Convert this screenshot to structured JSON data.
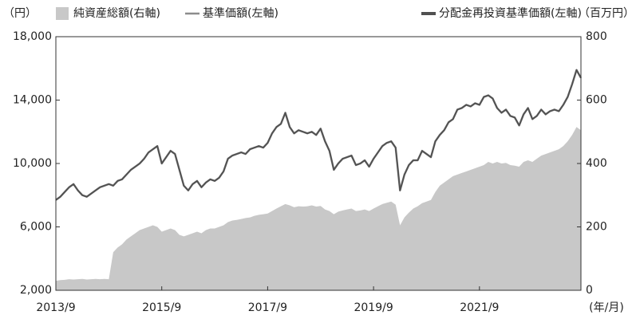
{
  "chart_data": {
    "type": "line-area",
    "y_label": "（円）",
    "y2_label": "（百万円）",
    "x_label": "(年/月)",
    "x": [
      "2013/9",
      "2013/10",
      "2013/11",
      "2013/12",
      "2014/1",
      "2014/2",
      "2014/3",
      "2014/4",
      "2014/5",
      "2014/6",
      "2014/7",
      "2014/8",
      "2014/9",
      "2014/10",
      "2014/11",
      "2014/12",
      "2015/1",
      "2015/2",
      "2015/3",
      "2015/4",
      "2015/5",
      "2015/6",
      "2015/7",
      "2015/8",
      "2015/9",
      "2015/10",
      "2015/11",
      "2015/12",
      "2016/1",
      "2016/2",
      "2016/3",
      "2016/4",
      "2016/5",
      "2016/6",
      "2016/7",
      "2016/8",
      "2016/9",
      "2016/10",
      "2016/11",
      "2016/12",
      "2017/1",
      "2017/2",
      "2017/3",
      "2017/4",
      "2017/5",
      "2017/6",
      "2017/7",
      "2017/8",
      "2017/9",
      "2017/10",
      "2017/11",
      "2017/12",
      "2018/1",
      "2018/2",
      "2018/3",
      "2018/4",
      "2018/5",
      "2018/6",
      "2018/7",
      "2018/8",
      "2018/9",
      "2018/10",
      "2018/11",
      "2018/12",
      "2019/1",
      "2019/2",
      "2019/3",
      "2019/4",
      "2019/5",
      "2019/6",
      "2019/7",
      "2019/8",
      "2019/9",
      "2019/10",
      "2019/11",
      "2019/12",
      "2020/1",
      "2020/2",
      "2020/3",
      "2020/4",
      "2020/5",
      "2020/6",
      "2020/7",
      "2020/8",
      "2020/9",
      "2020/10",
      "2020/11",
      "2020/12",
      "2021/1",
      "2021/2",
      "2021/3",
      "2021/4",
      "2021/5",
      "2021/6",
      "2021/7",
      "2021/8",
      "2021/9",
      "2021/10",
      "2021/11",
      "2021/12",
      "2022/1",
      "2022/2",
      "2022/3",
      "2022/4",
      "2022/5",
      "2022/6",
      "2022/7",
      "2022/8",
      "2022/9",
      "2022/10",
      "2022/11",
      "2022/12",
      "2023/1",
      "2023/2",
      "2023/3",
      "2023/4",
      "2023/5",
      "2023/6",
      "2023/7",
      "2023/8"
    ],
    "xticks": [
      "2013/9",
      "2015/9",
      "2017/9",
      "2019/9",
      "2021/9"
    ],
    "series": [
      {
        "name": "純資産総額(右軸)",
        "kind": "area",
        "axis": "y2",
        "color": "#c8c8c8",
        "values": [
          30,
          32,
          33,
          35,
          34,
          35,
          36,
          34,
          35,
          36,
          35,
          36,
          35,
          120,
          135,
          145,
          160,
          170,
          180,
          190,
          195,
          200,
          205,
          200,
          185,
          190,
          195,
          190,
          175,
          170,
          175,
          180,
          185,
          180,
          190,
          195,
          195,
          200,
          205,
          215,
          220,
          222,
          225,
          228,
          230,
          235,
          238,
          240,
          242,
          250,
          258,
          265,
          272,
          268,
          262,
          265,
          264,
          265,
          268,
          264,
          266,
          255,
          250,
          240,
          248,
          252,
          255,
          258,
          250,
          252,
          255,
          250,
          258,
          265,
          272,
          276,
          280,
          270,
          205,
          230,
          245,
          258,
          265,
          275,
          280,
          285,
          310,
          330,
          340,
          350,
          360,
          365,
          370,
          375,
          380,
          385,
          390,
          395,
          405,
          400,
          405,
          400,
          402,
          395,
          393,
          390,
          405,
          410,
          405,
          415,
          425,
          430,
          435,
          440,
          445,
          455,
          470,
          490,
          515,
          505
        ]
      },
      {
        "name": "基準価額(左軸)",
        "kind": "line",
        "color": "#8c8c8c",
        "values": [
          7700,
          7900,
          8200,
          8500,
          8700,
          8300,
          8000,
          7900,
          8100,
          8300,
          8500,
          8600,
          8700,
          8600,
          8900,
          9000,
          9300,
          9600,
          9800,
          10000,
          10300,
          10700,
          10900,
          11100,
          10000,
          10400,
          10800,
          10600,
          9600,
          8600,
          8300,
          8700,
          8900,
          8500,
          8800,
          9000,
          8900,
          9100,
          9500,
          10300,
          10500,
          10600,
          10700,
          10600,
          10900,
          11000,
          11100,
          11000,
          11300,
          11900,
          12300,
          12500,
          13200,
          12300,
          11900,
          12100,
          12000,
          11900,
          12000,
          11800,
          12200,
          11400,
          10800,
          9600,
          10000,
          10300,
          10400,
          10500,
          9900,
          10000,
          10200,
          9800,
          10300,
          10700,
          11100,
          11300,
          11400,
          11000,
          8300,
          9300,
          9900,
          10200,
          10200,
          10800,
          10600,
          10400,
          11400,
          11800,
          12100,
          12600,
          12800,
          13400,
          13500,
          13700,
          13600,
          13800,
          13700,
          14200,
          14300,
          14100,
          13500,
          13200,
          13400,
          13000,
          12900,
          12400,
          13100,
          13500,
          12800,
          13000,
          13400,
          13100,
          13300,
          13400,
          13300,
          13700,
          14200,
          15000,
          15900,
          15400
        ]
      },
      {
        "name": "分配金再投資基準価額(左軸)",
        "kind": "line",
        "color": "#505050",
        "values": [
          7700,
          7900,
          8200,
          8500,
          8700,
          8300,
          8000,
          7900,
          8100,
          8300,
          8500,
          8600,
          8700,
          8600,
          8900,
          9000,
          9300,
          9600,
          9800,
          10000,
          10300,
          10700,
          10900,
          11100,
          10000,
          10400,
          10800,
          10600,
          9600,
          8600,
          8300,
          8700,
          8900,
          8500,
          8800,
          9000,
          8900,
          9100,
          9500,
          10300,
          10500,
          10600,
          10700,
          10600,
          10900,
          11000,
          11100,
          11000,
          11300,
          11900,
          12300,
          12500,
          13200,
          12300,
          11900,
          12100,
          12000,
          11900,
          12000,
          11800,
          12200,
          11400,
          10800,
          9600,
          10000,
          10300,
          10400,
          10500,
          9900,
          10000,
          10200,
          9800,
          10300,
          10700,
          11100,
          11300,
          11400,
          11000,
          8300,
          9300,
          9900,
          10200,
          10200,
          10800,
          10600,
          10400,
          11400,
          11800,
          12100,
          12600,
          12800,
          13400,
          13500,
          13700,
          13600,
          13800,
          13700,
          14200,
          14300,
          14100,
          13500,
          13200,
          13400,
          13000,
          12900,
          12400,
          13100,
          13500,
          12800,
          13000,
          13400,
          13100,
          13300,
          13400,
          13300,
          13700,
          14200,
          15000,
          15900,
          15400
        ]
      }
    ],
    "ylim": [
      2000,
      18000
    ],
    "yticks": [
      {
        "value": 2000,
        "label": "2,000"
      },
      {
        "value": 6000,
        "label": "6,000"
      },
      {
        "value": 10000,
        "label": "10,000"
      },
      {
        "value": 14000,
        "label": "14,000"
      },
      {
        "value": 18000,
        "label": "18,000"
      }
    ],
    "y2lim": [
      0,
      800
    ],
    "y2ticks": [
      0,
      200,
      400,
      600,
      800
    ],
    "grid": false
  }
}
